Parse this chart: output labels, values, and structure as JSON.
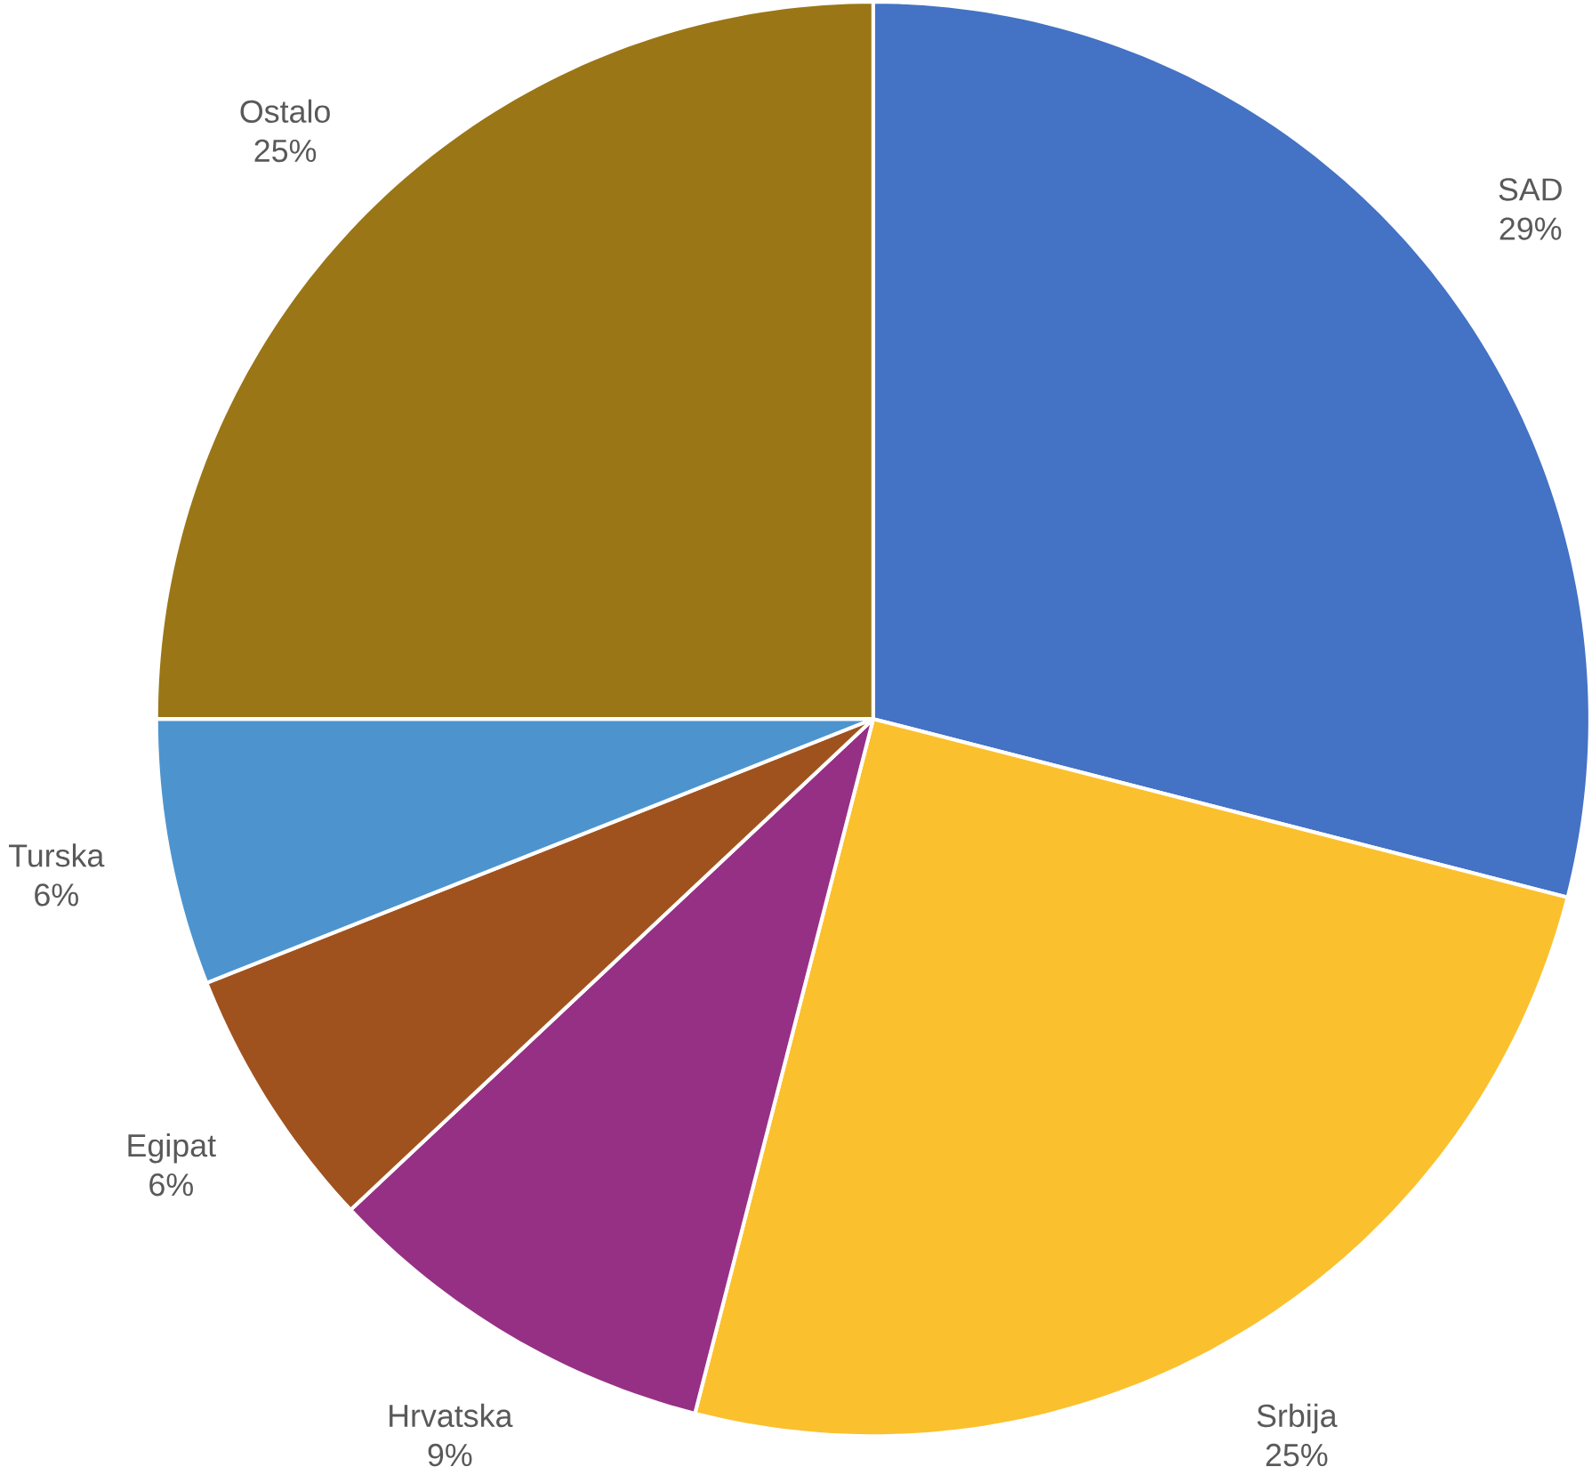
{
  "chart_data": {
    "type": "pie",
    "categories": [
      "SAD",
      "Srbija",
      "Hrvatska",
      "Egipat",
      "Turska",
      "Ostalo"
    ],
    "values": [
      29,
      25,
      9,
      6,
      6,
      25
    ],
    "value_labels": [
      "29%",
      "25%",
      "9%",
      "6%",
      "6%",
      "25%"
    ],
    "colors": [
      "#4472c4",
      "#fbc02d",
      "#963085",
      "#a0521e",
      "#4d94cf",
      "#9a7616"
    ]
  }
}
